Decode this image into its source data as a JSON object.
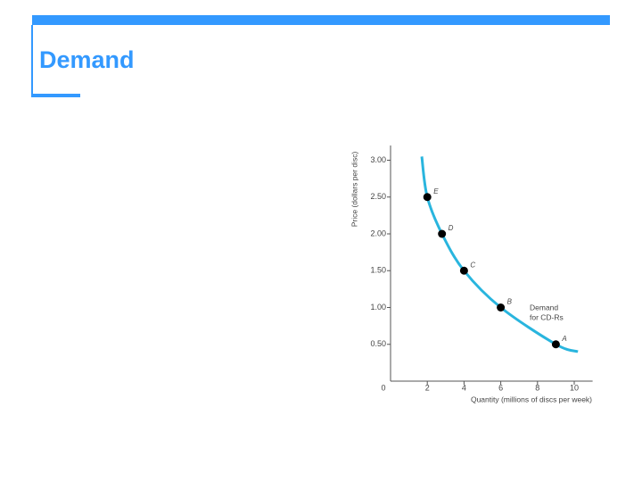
{
  "slide": {
    "title": "Demand"
  },
  "chart_data": {
    "type": "line",
    "y_label": "Price (dollars per disc)",
    "x_label": "Quantity (millions of discs per week)",
    "curve_label": [
      "Demand",
      "for CD-Rs"
    ],
    "curve": {
      "color": "#29b5de",
      "x": [
        1.7,
        2.0,
        2.8,
        4.0,
        6.0,
        9.0,
        10.2
      ],
      "y": [
        3.05,
        2.5,
        2.0,
        1.5,
        1.0,
        0.5,
        0.4
      ]
    },
    "points": {
      "color": "#000000",
      "labels": [
        "E",
        "D",
        "C",
        "B",
        "A"
      ],
      "x": [
        2.0,
        2.8,
        4.0,
        6.0,
        9.0
      ],
      "y": [
        2.5,
        2.0,
        1.5,
        1.0,
        0.5
      ]
    },
    "xlim": [
      0,
      11
    ],
    "ylim": [
      0,
      3.2
    ],
    "xticks": [
      0,
      2,
      4,
      6,
      8,
      10
    ],
    "yticks": [
      {
        "value": 0.5,
        "label": "0.50"
      },
      {
        "value": 1.0,
        "label": "1.00"
      },
      {
        "value": 1.5,
        "label": "1.50"
      },
      {
        "value": 2.0,
        "label": "2.00"
      },
      {
        "value": 2.5,
        "label": "2.50"
      },
      {
        "value": 3.0,
        "label": "3.00"
      }
    ]
  }
}
